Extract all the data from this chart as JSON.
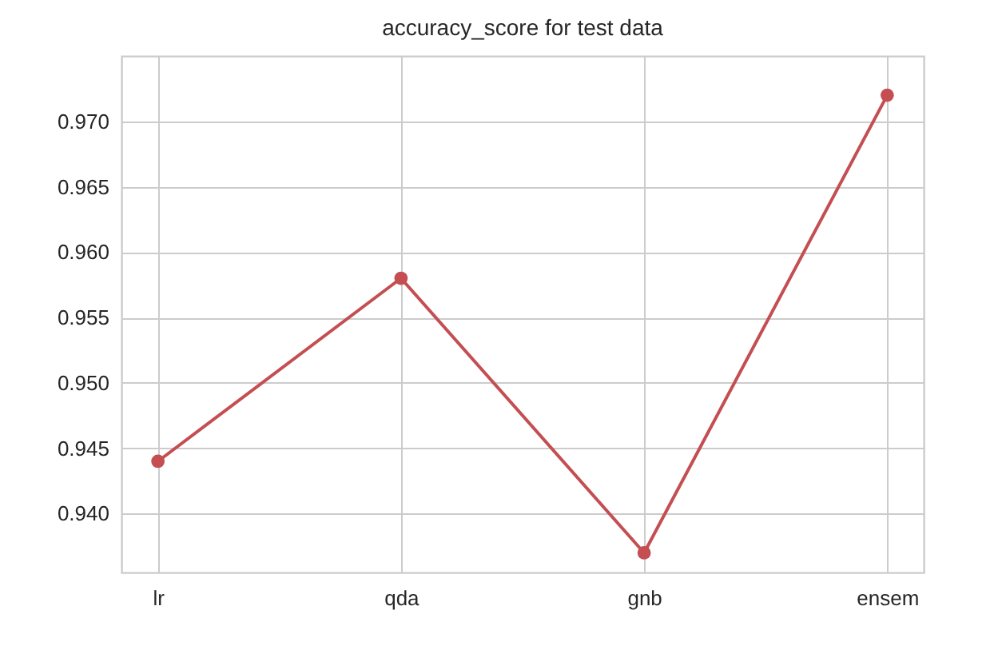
{
  "chart_data": {
    "type": "line",
    "title": "accuracy_score for test data",
    "categories": [
      "lr",
      "qda",
      "gnb",
      "ensem"
    ],
    "series": [
      {
        "color": "#c44e52",
        "values": [
          0.944,
          0.958,
          0.937,
          0.972
        ]
      }
    ],
    "ylim": [
      0.9355,
      0.975
    ],
    "yticks": [
      {
        "value": 0.94,
        "label": "0.940"
      },
      {
        "value": 0.945,
        "label": "0.945"
      },
      {
        "value": 0.95,
        "label": "0.950"
      },
      {
        "value": 0.955,
        "label": "0.955"
      },
      {
        "value": 0.96,
        "label": "0.960"
      },
      {
        "value": 0.965,
        "label": "0.965"
      },
      {
        "value": 0.97,
        "label": "0.970"
      }
    ],
    "grid": true,
    "marker": "circle",
    "line_style": "solid"
  }
}
